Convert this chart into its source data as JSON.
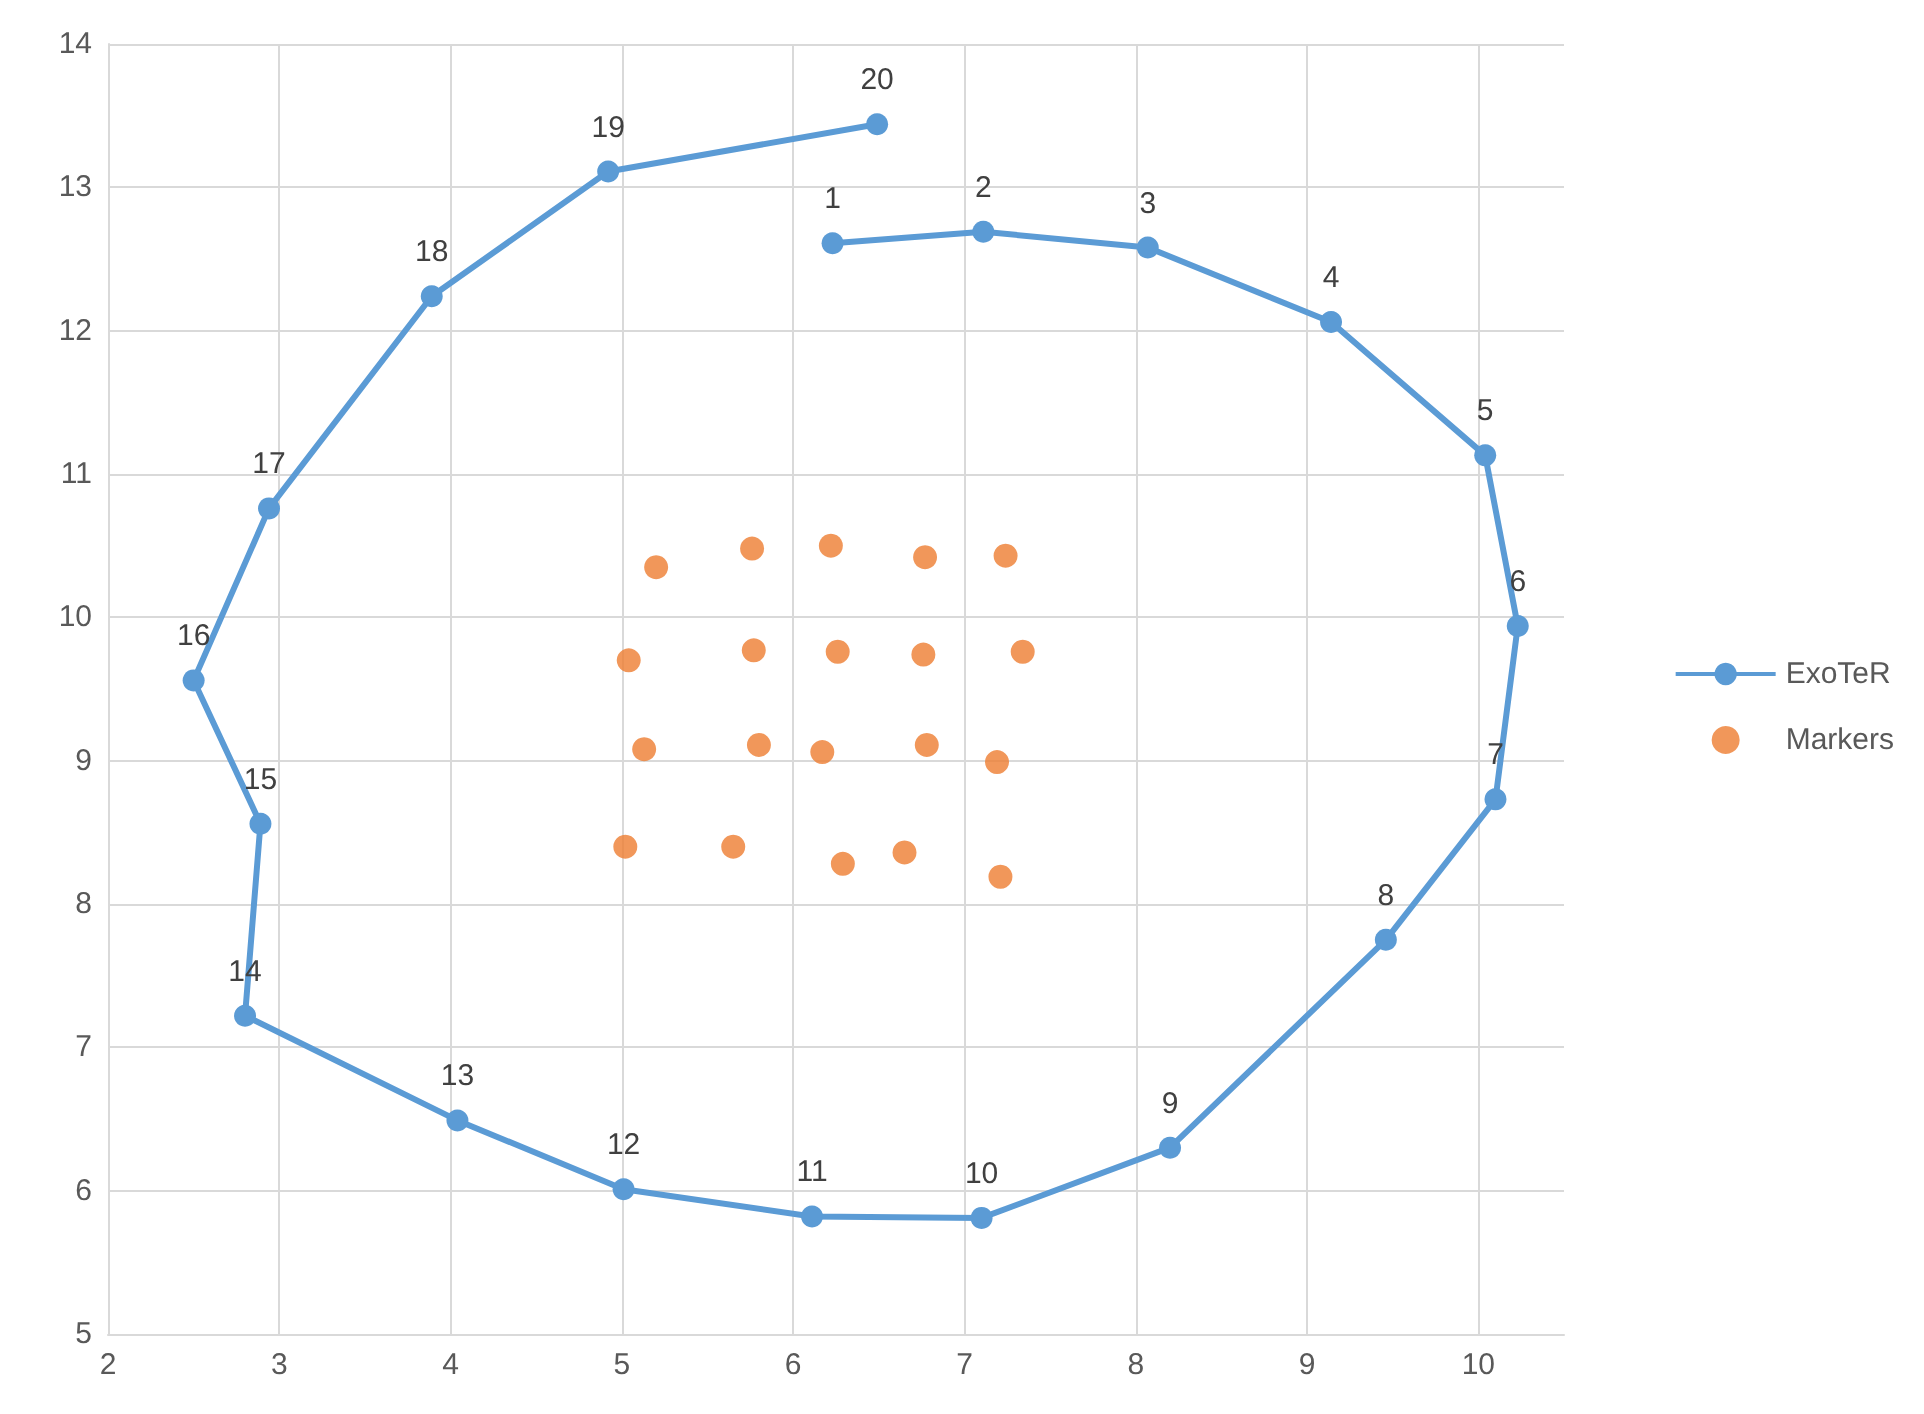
{
  "chart_data": {
    "type": "scatter",
    "xlim": [
      2,
      10.5
    ],
    "xticks": [
      2,
      3,
      4,
      5,
      6,
      7,
      8,
      9,
      10
    ],
    "ylim": [
      5,
      14
    ],
    "yticks": [
      5,
      6,
      7,
      8,
      9,
      10,
      11,
      12,
      13,
      14
    ],
    "grid": true,
    "legend": "right",
    "marker": "circle",
    "series": [
      {
        "name": "ExoTeR",
        "type": "line",
        "color": "#5b9bd5",
        "x": [
          6.23,
          7.11,
          8.07,
          9.14,
          10.04,
          10.23,
          10.1,
          9.46,
          8.2,
          7.1,
          6.11,
          5.01,
          4.04,
          2.8,
          2.89,
          2.5,
          2.94,
          3.89,
          4.92,
          6.49
        ],
        "values": [
          12.61,
          12.69,
          12.58,
          12.06,
          11.13,
          9.94,
          8.73,
          7.75,
          6.3,
          5.81,
          5.82,
          6.01,
          6.49,
          7.22,
          8.56,
          9.56,
          10.76,
          12.24,
          13.11,
          13.44
        ]
      },
      {
        "name": "Markers",
        "color": "#ed7d31",
        "x": [
          5.2,
          5.76,
          6.22,
          6.77,
          7.24,
          5.04,
          5.77,
          6.26,
          6.76,
          7.34,
          5.13,
          5.8,
          6.17,
          6.78,
          7.19,
          5.02,
          5.65,
          6.29,
          6.65,
          7.21
        ],
        "values": [
          10.35,
          10.48,
          10.5,
          10.42,
          10.43,
          9.7,
          9.77,
          9.76,
          9.74,
          9.76,
          9.08,
          9.11,
          9.06,
          9.11,
          8.99,
          8.4,
          8.4,
          8.28,
          8.36,
          8.19
        ]
      }
    ],
    "annotations": [
      {
        "text": "1",
        "x": 6.23,
        "y": 12.61
      },
      {
        "text": "2",
        "x": 7.11,
        "y": 12.69
      },
      {
        "text": "3",
        "x": 8.07,
        "y": 12.58
      },
      {
        "text": "4",
        "x": 9.14,
        "y": 12.06
      },
      {
        "text": "5",
        "x": 10.04,
        "y": 11.13
      },
      {
        "text": "6",
        "x": 10.23,
        "y": 9.94
      },
      {
        "text": "7",
        "x": 10.1,
        "y": 8.73
      },
      {
        "text": "8",
        "x": 9.46,
        "y": 7.75
      },
      {
        "text": "9",
        "x": 8.2,
        "y": 6.3
      },
      {
        "text": "10",
        "x": 7.1,
        "y": 5.81
      },
      {
        "text": "11",
        "x": 6.11,
        "y": 5.82
      },
      {
        "text": "12",
        "x": 5.01,
        "y": 6.01
      },
      {
        "text": "13",
        "x": 4.04,
        "y": 6.49
      },
      {
        "text": "14",
        "x": 2.8,
        "y": 7.22
      },
      {
        "text": "15",
        "x": 2.89,
        "y": 8.56
      },
      {
        "text": "16",
        "x": 2.5,
        "y": 9.56
      },
      {
        "text": "17",
        "x": 2.94,
        "y": 10.76
      },
      {
        "text": "18",
        "x": 3.89,
        "y": 12.24
      },
      {
        "text": "19",
        "x": 4.92,
        "y": 13.11
      },
      {
        "text": "20",
        "x": 6.49,
        "y": 13.44
      }
    ]
  }
}
